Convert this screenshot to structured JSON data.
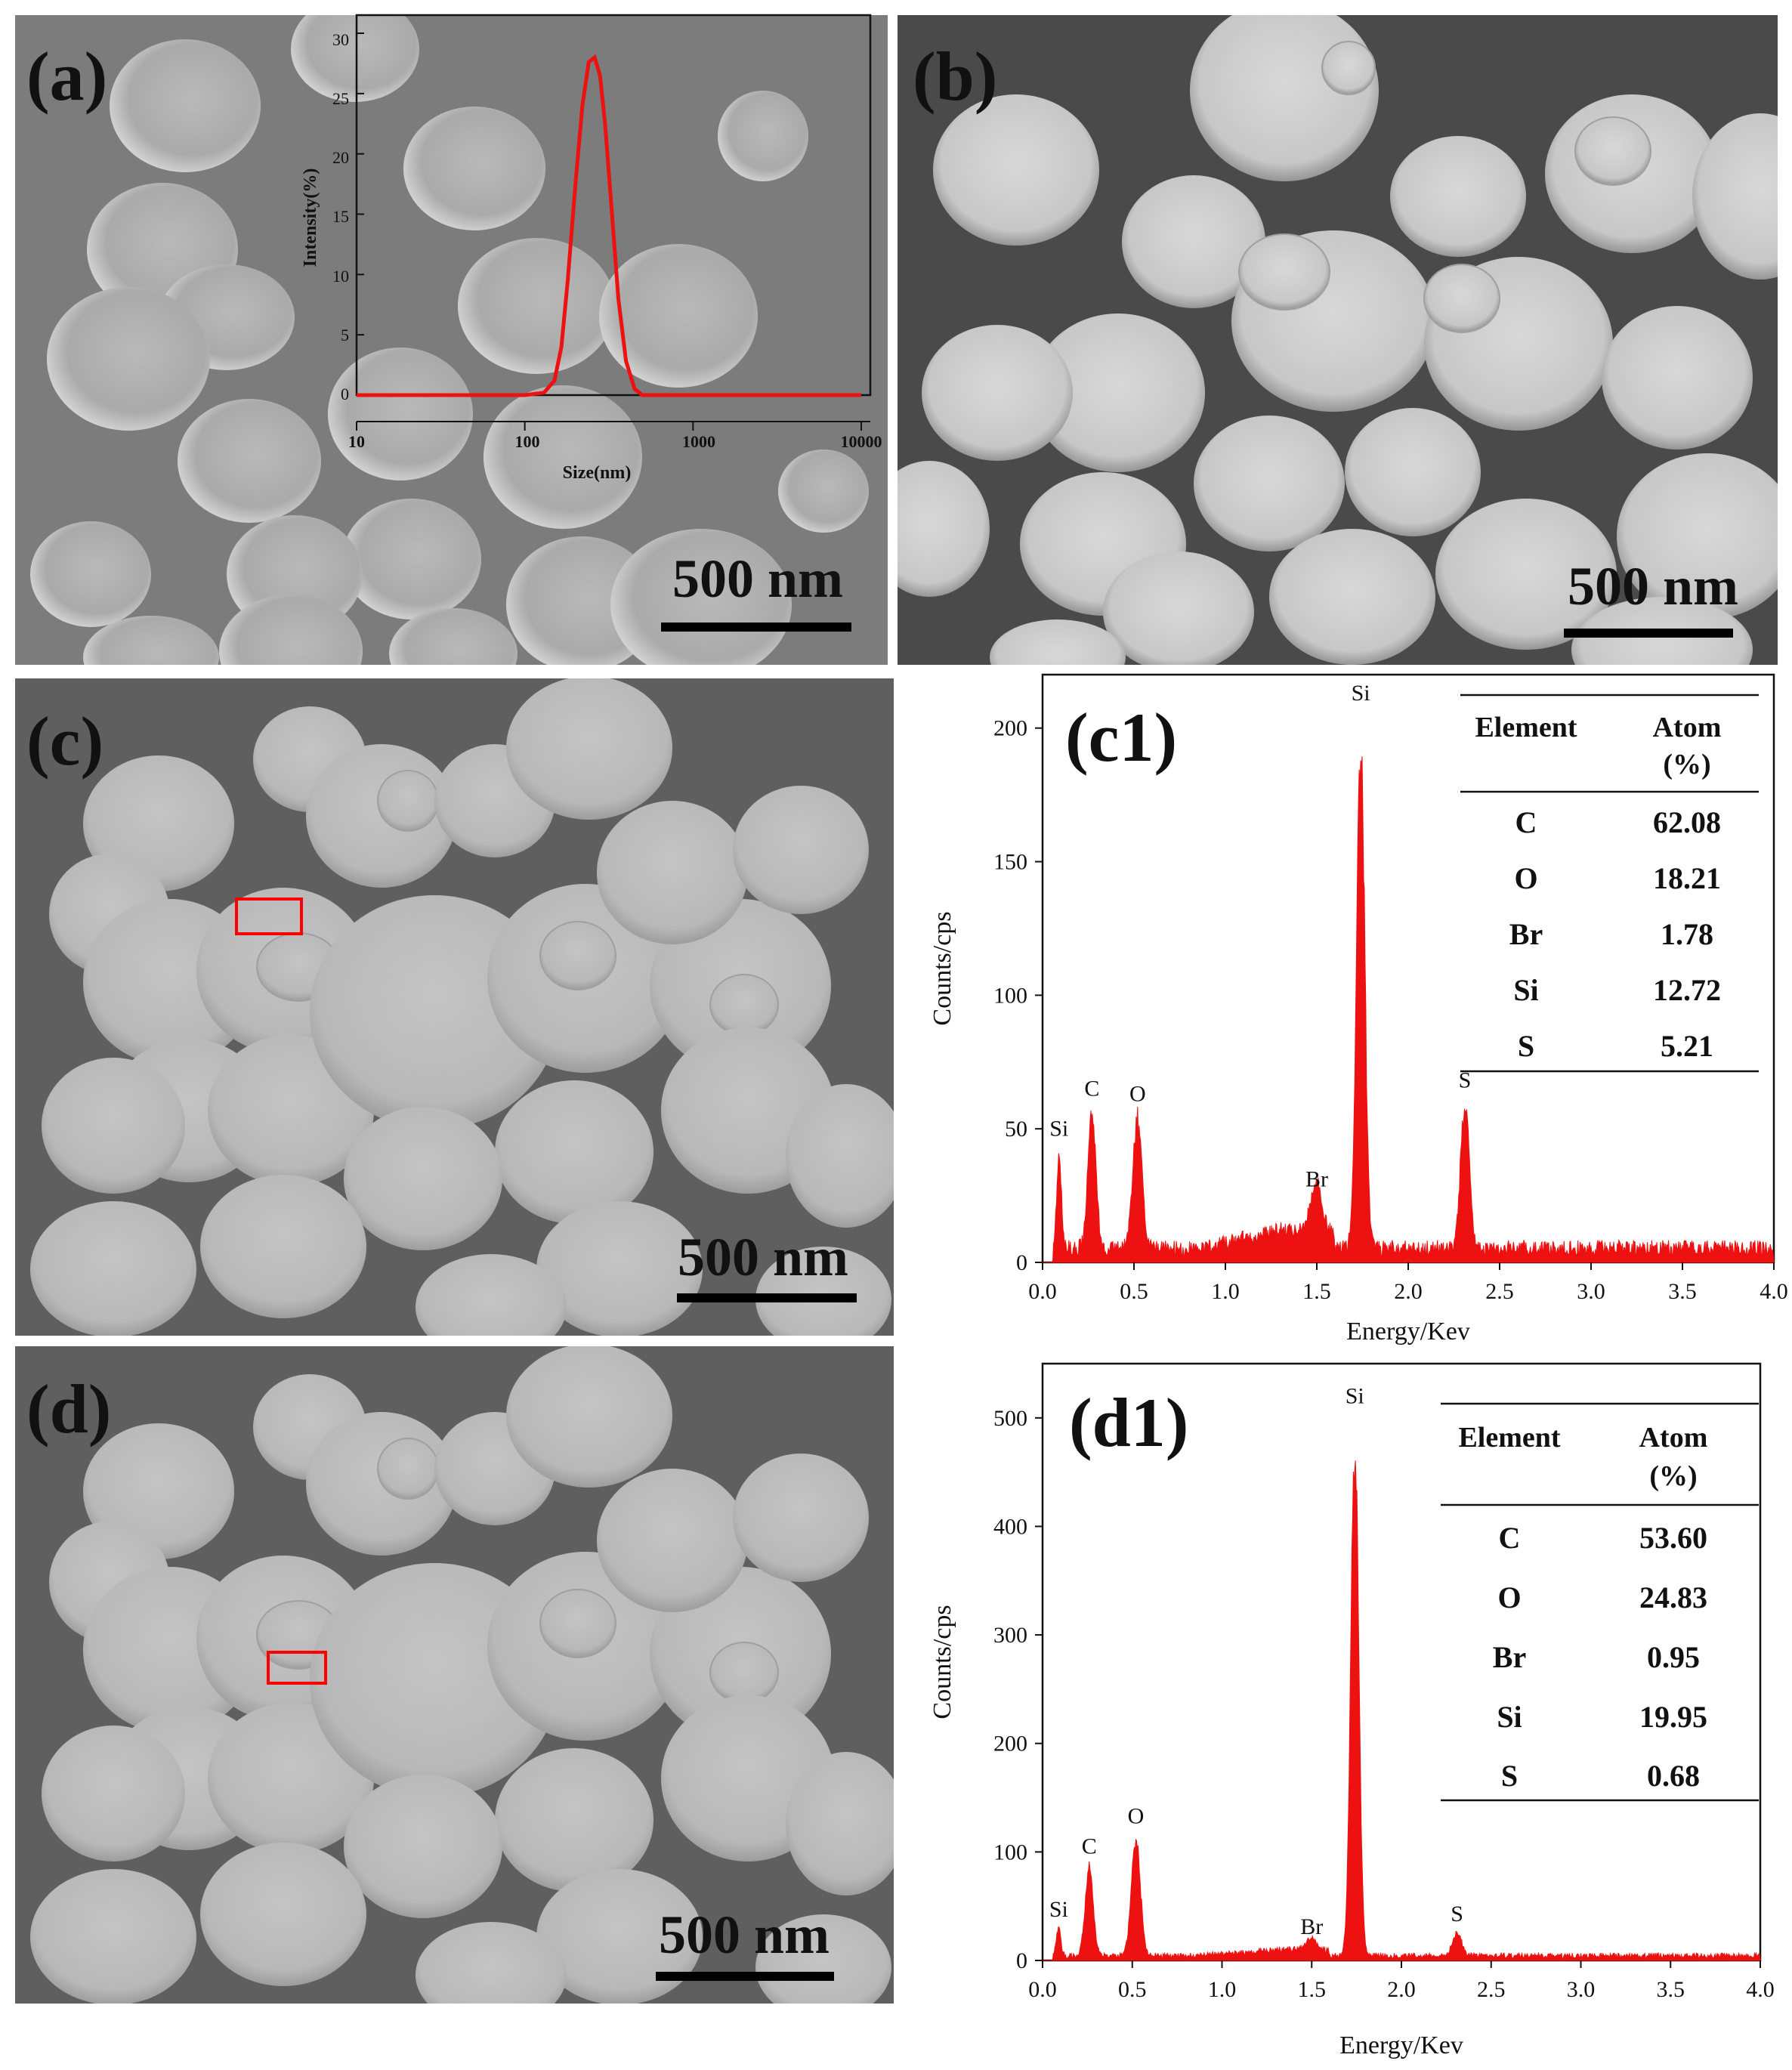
{
  "panels": {
    "a": {
      "label": "(a)",
      "scale_bar": "500 nm",
      "inset": {
        "xlabel": "Size(nm)",
        "ylabel": "Intensity(%)",
        "x_ticks": [
          "10",
          "100",
          "1000",
          "10000"
        ],
        "y_ticks": [
          "0",
          "5",
          "10",
          "15",
          "20",
          "25",
          "30"
        ]
      }
    },
    "b": {
      "label": "(b)",
      "scale_bar": "500 nm"
    },
    "c": {
      "label": "(c)",
      "scale_bar": "500 nm"
    },
    "d": {
      "label": "(d)",
      "scale_bar": "500 nm"
    },
    "c1": {
      "label": "(c1)",
      "xlabel": "Energy/Kev",
      "ylabel": "Counts/cps",
      "table": {
        "header": [
          "Element",
          "Atom",
          "(%)"
        ],
        "rows": [
          [
            "C",
            "62.08"
          ],
          [
            "O",
            "18.21"
          ],
          [
            "Br",
            "1.78"
          ],
          [
            "Si",
            "12.72"
          ],
          [
            "S",
            "5.21"
          ]
        ]
      }
    },
    "d1": {
      "label": "(d1)",
      "xlabel": "Energy/Kev",
      "ylabel": "Counts/cps",
      "table": {
        "header": [
          "Element",
          "Atom",
          "(%)"
        ],
        "rows": [
          [
            "C",
            "53.60"
          ],
          [
            "O",
            "24.83"
          ],
          [
            "Br",
            "0.95"
          ],
          [
            "Si",
            "19.95"
          ],
          [
            "S",
            "0.68"
          ]
        ]
      }
    }
  },
  "colors": {
    "spectrum": "#ee1111",
    "selection_box": "#ff0000"
  },
  "chart_data": [
    {
      "id": "a-inset",
      "type": "line",
      "xlabel": "Size(nm)",
      "ylabel": "Intensity(%)",
      "x_scale": "log",
      "xlim": [
        10,
        10000
      ],
      "ylim": [
        0,
        32
      ],
      "series": [
        {
          "x": [
            10,
            100,
            130,
            150,
            165,
            180,
            200,
            220,
            240,
            260,
            280,
            300,
            330,
            360,
            400,
            450,
            500,
            1000,
            10000
          ],
          "y": [
            0,
            0,
            0.2,
            1.2,
            4,
            9.5,
            17.5,
            24,
            27.6,
            28,
            26.5,
            22.5,
            15,
            8,
            2.8,
            0.5,
            0,
            0,
            0
          ]
        }
      ]
    },
    {
      "id": "c1",
      "type": "area",
      "xlabel": "Energy/Kev",
      "ylabel": "Counts/cps",
      "xlim": [
        0,
        4
      ],
      "ylim": [
        0,
        220
      ],
      "x_ticks": [
        0.0,
        0.5,
        1.0,
        1.5,
        2.0,
        2.5,
        3.0,
        3.5,
        4.0
      ],
      "y_ticks": [
        0,
        50,
        100,
        150,
        200
      ],
      "baseline": 6,
      "peaks": [
        {
          "label": "Si",
          "x": 0.09,
          "y": 44
        },
        {
          "label": "C",
          "x": 0.27,
          "y": 59
        },
        {
          "label": "O",
          "x": 0.52,
          "y": 57
        },
        {
          "label": "Br",
          "x": 1.5,
          "y": 25
        },
        {
          "label": "Si",
          "x": 1.74,
          "y": 207
        },
        {
          "label": "S",
          "x": 2.31,
          "y": 62
        }
      ]
    },
    {
      "id": "d1",
      "type": "area",
      "xlabel": "Energy/Kev",
      "ylabel": "Counts/cps",
      "xlim": [
        0,
        4
      ],
      "ylim": [
        0,
        550
      ],
      "x_ticks": [
        0.0,
        0.5,
        1.0,
        1.5,
        2.0,
        2.5,
        3.0,
        3.5,
        4.0
      ],
      "y_ticks": [
        0,
        100,
        200,
        300,
        400,
        500
      ],
      "baseline": 5,
      "peaks": [
        {
          "label": "Si",
          "x": 0.09,
          "y": 32
        },
        {
          "label": "C",
          "x": 0.26,
          "y": 90
        },
        {
          "label": "O",
          "x": 0.52,
          "y": 118
        },
        {
          "label": "Br",
          "x": 1.5,
          "y": 16
        },
        {
          "label": "Si",
          "x": 1.74,
          "y": 505
        },
        {
          "label": "S",
          "x": 2.31,
          "y": 28
        }
      ]
    }
  ]
}
